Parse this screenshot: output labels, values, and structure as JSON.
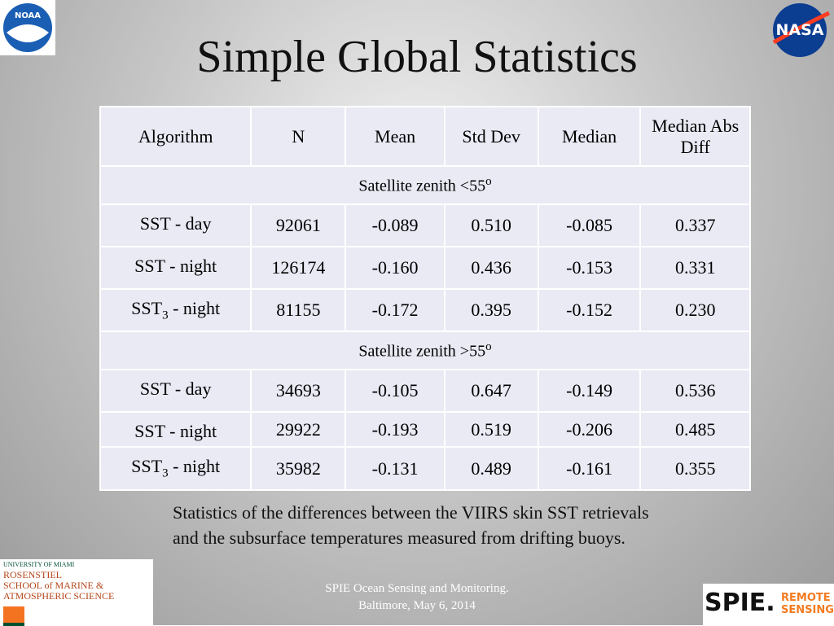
{
  "title": "Simple Global Statistics",
  "table": {
    "header": [
      "Algorithm",
      "N",
      "Mean",
      "Std Dev",
      "Median",
      "Median Abs Diff"
    ],
    "sections": [
      {
        "label": {
          "text": "Satellite zenith <55",
          "sup": "o"
        },
        "rows": [
          [
            {
              "text": "SST - day"
            },
            "92061",
            "-0.089",
            "0.510",
            "-0.085",
            "0.337"
          ],
          [
            {
              "text": "SST - night"
            },
            "126174",
            "-0.160",
            "0.436",
            "-0.153",
            "0.331"
          ],
          [
            {
              "text": "SST",
              "sub": "3",
              "after": " - night"
            },
            "81155",
            "-0.172",
            "0.395",
            "-0.152",
            "0.230"
          ]
        ]
      },
      {
        "label": {
          "text": "Satellite zenith >55",
          "sup": "o"
        },
        "rows": [
          [
            {
              "text": "SST - day"
            },
            "34693",
            "-0.105",
            "0.647",
            "-0.149",
            "0.536"
          ],
          [
            {
              "text": "SST - night"
            },
            "29922",
            "-0.193",
            "0.519",
            "-0.206",
            "0.485"
          ],
          [
            {
              "text": "SST",
              "sub": "3",
              "after": " - night"
            },
            "35982",
            "-0.131",
            "0.489",
            "-0.161",
            "0.355"
          ]
        ]
      }
    ]
  },
  "caption": "Statistics of the differences between the VIIRS skin SST retrievals and the subsurface temperatures measured from drifting buoys.",
  "footer": [
    "SPIE Ocean Sensing and Monitoring.",
    "Baltimore, May 6, 2014"
  ],
  "logos": {
    "noaa": "NOAA",
    "nasa": "NASA",
    "um": [
      "UNIVERSITY OF MIAMI",
      "ROSENSTIEL",
      "SCHOOL of MARINE &",
      "ATMOSPHERIC SCIENCE"
    ],
    "spie": {
      "mark": "SPIE.",
      "text": [
        "REMOTE",
        "SENSING"
      ]
    }
  }
}
